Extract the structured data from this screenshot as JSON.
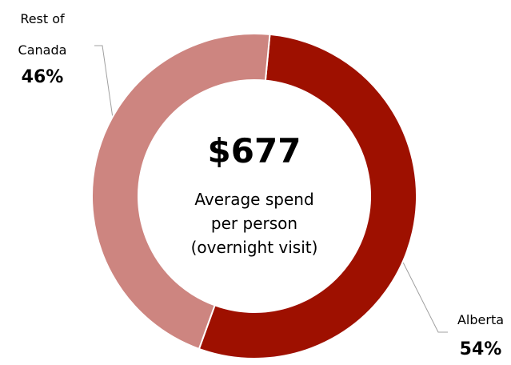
{
  "chart_data": {
    "type": "donut",
    "categories": [
      "Alberta",
      "Rest of Canada"
    ],
    "values": [
      54,
      46
    ],
    "value_labels": [
      "54%",
      "46%"
    ],
    "colors": [
      "#9e1000",
      "#cd8580"
    ],
    "center_value": "$677",
    "center_text": [
      "Average spend",
      "per person",
      "(overnight visit)"
    ]
  }
}
